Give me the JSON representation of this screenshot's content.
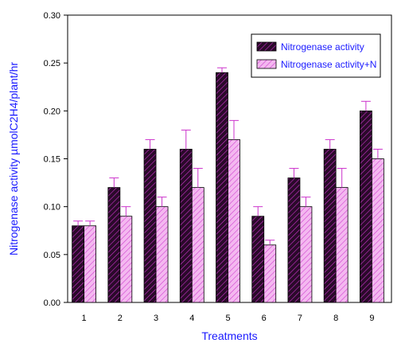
{
  "chart_data": {
    "type": "bar",
    "categories": [
      "1",
      "2",
      "3",
      "4",
      "5",
      "6",
      "7",
      "8",
      "9"
    ],
    "series": [
      {
        "name": "Nitrogenase activity",
        "values": [
          0.08,
          0.12,
          0.16,
          0.16,
          0.24,
          0.09,
          0.13,
          0.16,
          0.2
        ],
        "errors": [
          0.005,
          0.01,
          0.01,
          0.02,
          0.005,
          0.01,
          0.01,
          0.01,
          0.01
        ],
        "color": "#2a0a2a",
        "hatch": "#cc33cc",
        "error_color": "#cc33cc"
      },
      {
        "name": "Nitrogenase activity+N",
        "values": [
          0.08,
          0.09,
          0.1,
          0.12,
          0.17,
          0.06,
          0.1,
          0.12,
          0.15
        ],
        "errors": [
          0.005,
          0.01,
          0.01,
          0.02,
          0.02,
          0.005,
          0.01,
          0.02,
          0.01
        ],
        "color": "#f4b8f0",
        "hatch": "#d040d0",
        "error_color": "#cc33cc"
      }
    ],
    "xlabel": "Treatments",
    "ylabel": "Nitrogenase activity µmolC2H4/plant/hr",
    "ylim": [
      0,
      0.3
    ],
    "yticks": [
      "0.00",
      "0.05",
      "0.10",
      "0.15",
      "0.20",
      "0.25",
      "0.30"
    ],
    "legend_position": "top-right",
    "grid": false
  }
}
